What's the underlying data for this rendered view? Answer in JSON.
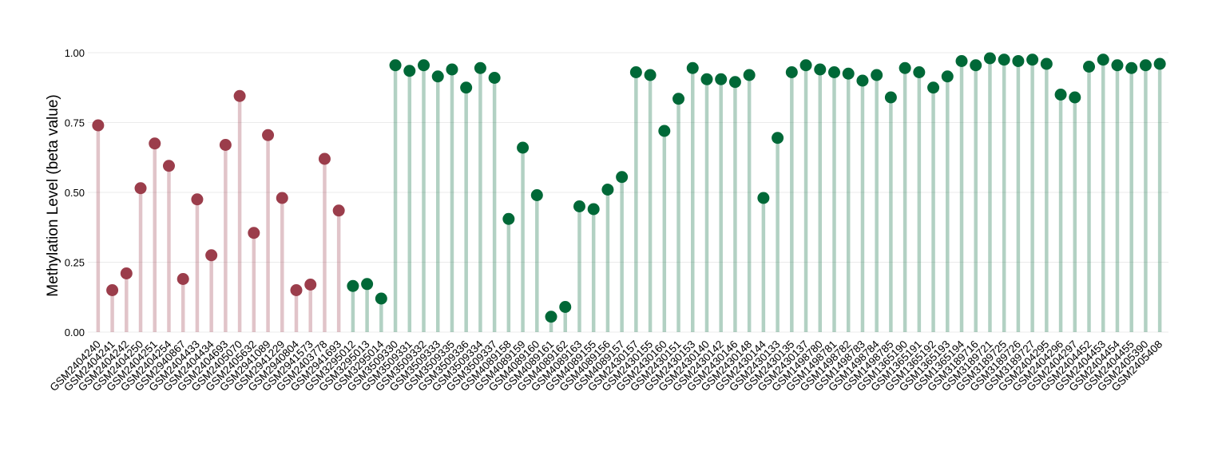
{
  "chart_data": {
    "type": "lollipop",
    "y_label": "Methylation Level (beta value)",
    "ylim": [
      0,
      1.05
    ],
    "yticks": [
      {
        "value": 0,
        "label": "0.00"
      },
      {
        "value": 0.25,
        "label": "0.25"
      },
      {
        "value": 0.5,
        "label": "0.50"
      },
      {
        "value": 0.75,
        "label": "0.75"
      },
      {
        "value": 1,
        "label": "1.00"
      }
    ],
    "grid": true,
    "categories": [
      "GSM2404240",
      "GSM2404241",
      "GSM2404242",
      "GSM2404250",
      "GSM2404251",
      "GSM2404254",
      "GSM2940867",
      "GSM2404433",
      "GSM2404434",
      "GSM2404693",
      "GSM2405070",
      "GSM2405632",
      "GSM2941089",
      "GSM2941229",
      "GSM2940804",
      "GSM2941573",
      "GSM2403778",
      "GSM2941693",
      "GSM3295012",
      "GSM3295013",
      "GSM3295014",
      "GSM3509330",
      "GSM3509331",
      "GSM3509332",
      "GSM3509333",
      "GSM3509335",
      "GSM3509336",
      "GSM3509334",
      "GSM3509337",
      "GSM4089158",
      "GSM4089159",
      "GSM4089160",
      "GSM4089161",
      "GSM4089162",
      "GSM4089163",
      "GSM4089155",
      "GSM4089156",
      "GSM4089157",
      "GSM2430157",
      "GSM2430155",
      "GSM2430160",
      "GSM2430151",
      "GSM2430153",
      "GSM2430140",
      "GSM2430142",
      "GSM2430146",
      "GSM2430148",
      "GSM2430144",
      "GSM2430133",
      "GSM2430135",
      "GSM2430137",
      "GSM1498780",
      "GSM1498781",
      "GSM1498782",
      "GSM1498783",
      "GSM1498784",
      "GSM1498785",
      "GSM1365190",
      "GSM1365191",
      "GSM1365192",
      "GSM1365193",
      "GSM1365194",
      "GSM3189716",
      "GSM3189721",
      "GSM3189725",
      "GSM3189726",
      "GSM3189727",
      "GSM2404295",
      "GSM2404296",
      "GSM2404297",
      "GSM2404452",
      "GSM2404453",
      "GSM2404454",
      "GSM2404455",
      "GSM2405390",
      "GSM2405408"
    ],
    "values": [
      0.74,
      0.15,
      0.21,
      0.515,
      0.675,
      0.595,
      0.19,
      0.475,
      0.275,
      0.67,
      0.845,
      0.355,
      0.705,
      0.48,
      0.15,
      0.17,
      0.62,
      0.435,
      0.165,
      0.172,
      0.12,
      0.955,
      0.935,
      0.955,
      0.915,
      0.94,
      0.875,
      0.945,
      0.91,
      0.405,
      0.66,
      0.49,
      0.055,
      0.09,
      0.45,
      0.44,
      0.51,
      0.555,
      0.93,
      0.92,
      0.72,
      0.835,
      0.945,
      0.905,
      0.905,
      0.895,
      0.92,
      0.48,
      0.695,
      0.93,
      0.955,
      0.94,
      0.93,
      0.925,
      0.9,
      0.92,
      0.84,
      0.945,
      0.93,
      0.875,
      0.915,
      0.97,
      0.955,
      0.98,
      0.975,
      0.97,
      0.975,
      0.96,
      0.85,
      0.84,
      0.95,
      0.975,
      0.955,
      0.945,
      0.955,
      0.96
    ],
    "colors": [
      "#9b3d4b",
      "#9b3d4b",
      "#9b3d4b",
      "#9b3d4b",
      "#9b3d4b",
      "#9b3d4b",
      "#9b3d4b",
      "#9b3d4b",
      "#9b3d4b",
      "#9b3d4b",
      "#9b3d4b",
      "#9b3d4b",
      "#9b3d4b",
      "#9b3d4b",
      "#9b3d4b",
      "#9b3d4b",
      "#9b3d4b",
      "#9b3d4b",
      "#006837",
      "#006837",
      "#006837",
      "#006837",
      "#006837",
      "#006837",
      "#006837",
      "#006837",
      "#006837",
      "#006837",
      "#006837",
      "#006837",
      "#006837",
      "#006837",
      "#006837",
      "#006837",
      "#006837",
      "#006837",
      "#006837",
      "#006837",
      "#006837",
      "#006837",
      "#006837",
      "#006837",
      "#006837",
      "#006837",
      "#006837",
      "#006837",
      "#006837",
      "#006837",
      "#006837",
      "#006837",
      "#006837",
      "#006837",
      "#006837",
      "#006837",
      "#006837",
      "#006837",
      "#006837",
      "#006837",
      "#006837",
      "#006837",
      "#006837",
      "#006837",
      "#006837",
      "#006837",
      "#006837",
      "#006837",
      "#006837",
      "#006837",
      "#006837",
      "#006837",
      "#006837",
      "#006837",
      "#006837",
      "#006837",
      "#006837",
      "#006837"
    ]
  }
}
